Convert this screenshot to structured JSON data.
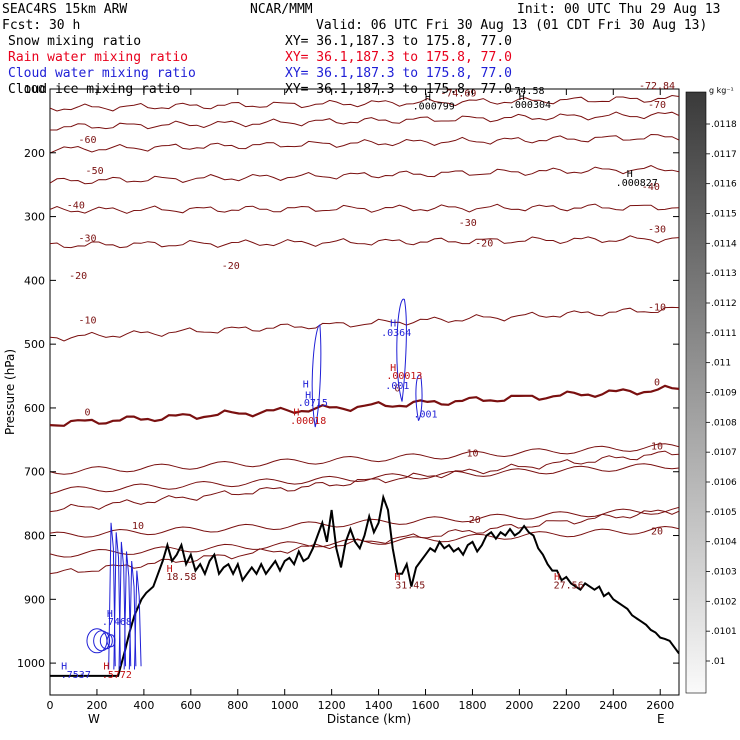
{
  "header": {
    "model": "SEAC4RS 15km ARW",
    "fcst": "Fcst:   30 h",
    "center": "NCAR/MMM",
    "init": "Init: 00 UTC Thu 29 Aug 13",
    "valid": "Valid: 06 UTC Fri 30 Aug 13 (01 CDT Fri 30 Aug 13)"
  },
  "fields": [
    {
      "name": "Snow mixing ratio",
      "xy": "XY=  36.1,187.3 to 175.8, 77.0",
      "color": "#000000"
    },
    {
      "name": "Rain water mixing ratio",
      "xy": "XY=  36.1,187.3 to 175.8, 77.0",
      "color": "#e8001c"
    },
    {
      "name": "Cloud water mixing ratio",
      "xy": "XY=  36.1,187.3 to 175.8, 77.0",
      "color": "#1f1fd6"
    },
    {
      "name": "Cloud ice mixing ratio",
      "xy": "XY=  36.1,187.3 to 175.8, 77.0",
      "color": "#000000"
    }
  ],
  "colorbar": {
    "unit": "g kg⁻¹",
    "labels": [
      ".0118",
      ".0117",
      ".0116",
      ".0115",
      ".0114",
      ".0113",
      ".0112",
      ".0111",
      ".011",
      ".0109",
      ".0108",
      ".0107",
      ".0106",
      ".0105",
      ".0104",
      ".0103",
      ".0102",
      ".0101",
      ".01"
    ]
  },
  "colors": {
    "temp_contour": "#7a1010",
    "rain": "#c01010",
    "cloud_water": "#1f1fd6",
    "terrain": "#000000"
  },
  "chart_data": {
    "type": "cross-section contour",
    "xlabel": "Distance (km)",
    "ylabel": "Pressure (hPa)",
    "xlim": [
      0,
      2680
    ],
    "ylim": [
      1050,
      100
    ],
    "xticks": [
      0,
      200,
      400,
      600,
      800,
      1000,
      1200,
      1400,
      1600,
      1800,
      2000,
      2200,
      2400,
      2600
    ],
    "yticks": [
      200,
      300,
      400,
      500,
      600,
      700,
      800,
      900,
      1000
    ],
    "ytick_top_label": "100",
    "end_labels": {
      "left": "W",
      "right": "E"
    },
    "temperature_isotherms": [
      {
        "value": -70,
        "p_left": 130,
        "p_right": 115
      },
      {
        "value": -60,
        "p_left": 160,
        "p_right": 140
      },
      {
        "value": -50,
        "p_left": 195,
        "p_right": 175
      },
      {
        "value": -40,
        "p_left": 245,
        "p_right": 225
      },
      {
        "value": -30,
        "p_left": 290,
        "p_right": 285
      },
      {
        "value": -20,
        "p_left": 345,
        "p_right": 335
      },
      {
        "value": -10,
        "p_left": 490,
        "p_right": 445
      },
      {
        "value": 0,
        "p_left": 625,
        "p_right": 570
      },
      {
        "value": 10,
        "p_left": 760,
        "p_right": 670
      },
      {
        "value": 20,
        "p_left": 860,
        "p_right": 760
      }
    ],
    "isotherm_labels": [
      {
        "text": "-60",
        "x": 160,
        "p": 185
      },
      {
        "text": "-50",
        "x": 190,
        "p": 233
      },
      {
        "text": "-40",
        "x": 110,
        "p": 287
      },
      {
        "text": "-30",
        "x": 160,
        "p": 339
      },
      {
        "text": "-20",
        "x": 120,
        "p": 398
      },
      {
        "text": "-10",
        "x": 160,
        "p": 468
      },
      {
        "text": "-20",
        "x": 770,
        "p": 382
      },
      {
        "text": "-30",
        "x": 1780,
        "p": 315
      },
      {
        "text": "-40",
        "x": 2560,
        "p": 258
      },
      {
        "text": "-30",
        "x": 2840,
        "p": 325
      },
      {
        "text": "-20",
        "x": 1850,
        "p": 347
      },
      {
        "text": "-10",
        "x": 2620,
        "p": 447
      },
      {
        "text": "-70",
        "x": 2670,
        "p": 130
      },
      {
        "text": "0",
        "x": 160,
        "p": 612
      },
      {
        "text": "0",
        "x": 1480,
        "p": 574
      },
      {
        "text": "0",
        "x": 2590,
        "p": 565
      },
      {
        "text": "10",
        "x": 1800,
        "p": 676
      },
      {
        "text": "10",
        "x": 2930,
        "p": 665
      },
      {
        "text": "20",
        "x": 1810,
        "p": 780
      },
      {
        "text": "20",
        "x": 2820,
        "p": 798
      },
      {
        "text": "10",
        "x": 375,
        "p": 790
      },
      {
        "text": "-72.84",
        "x": 2800,
        "p": 100
      }
    ],
    "extrema_labels": [
      {
        "text": "H",
        "x": 1610,
        "p": 118,
        "color": "#000000"
      },
      {
        "text": ".000799",
        "x": 1635,
        "p": 132,
        "color": "#000000"
      },
      {
        "text": "-74.69",
        "x": 1740,
        "p": 112,
        "color": "#7a1010"
      },
      {
        "text": "-74.58",
        "x": 2030,
        "p": 108,
        "color": "#000000"
      },
      {
        "text": "H",
        "x": 2010,
        "p": 117,
        "color": "#000000"
      },
      {
        "text": ".000304",
        "x": 2045,
        "p": 130,
        "color": "#000000"
      },
      {
        "text": "H",
        "x": 2470,
        "p": 238,
        "color": "#000000"
      },
      {
        "text": ".000827",
        "x": 2500,
        "p": 252,
        "color": "#000000"
      },
      {
        "text": "H",
        "x": 1462,
        "p": 472,
        "color": "#1f1fd6"
      },
      {
        "text": ".0364",
        "x": 1475,
        "p": 487,
        "color": "#1f1fd6"
      },
      {
        "text": "H",
        "x": 1462,
        "p": 542,
        "color": "#c01010"
      },
      {
        "text": ".00013",
        "x": 1510,
        "p": 555,
        "color": "#c01010"
      },
      {
        "text": ".001",
        "x": 1480,
        "p": 570,
        "color": "#1f1fd6"
      },
      {
        "text": ".001",
        "x": 1600,
        "p": 615,
        "color": "#1f1fd6"
      },
      {
        "text": "H",
        "x": 1090,
        "p": 568,
        "color": "#1f1fd6"
      },
      {
        "text": "H",
        "x": 1100,
        "p": 585,
        "color": "#1f1fd6"
      },
      {
        "text": ".0715",
        "x": 1120,
        "p": 597,
        "color": "#1f1fd6"
      },
      {
        "text": "H",
        "x": 1050,
        "p": 612,
        "color": "#c01010"
      },
      {
        "text": ".00018",
        "x": 1100,
        "p": 625,
        "color": "#c01010"
      },
      {
        "text": "H",
        "x": 510,
        "p": 857,
        "color": "#c01010"
      },
      {
        "text": "18.58",
        "x": 560,
        "p": 870,
        "color": "#7a1010"
      },
      {
        "text": "H",
        "x": 1480,
        "p": 870,
        "color": "#c01010"
      },
      {
        "text": "31.45",
        "x": 1535,
        "p": 883,
        "color": "#7a1010"
      },
      {
        "text": "H",
        "x": 2160,
        "p": 870,
        "color": "#c01010"
      },
      {
        "text": "27.56",
        "x": 2210,
        "p": 883,
        "color": "#7a1010"
      },
      {
        "text": "H",
        "x": 255,
        "p": 928,
        "color": "#1f1fd6"
      },
      {
        "text": ".7468",
        "x": 285,
        "p": 940,
        "color": "#1f1fd6"
      },
      {
        "text": "H",
        "x": 60,
        "p": 1010,
        "color": "#1f1fd6"
      },
      {
        "text": ".7537",
        "x": 110,
        "p": 1023,
        "color": "#1f1fd6"
      },
      {
        "text": "H",
        "x": 240,
        "p": 1010,
        "color": "#c01010"
      },
      {
        "text": ".5772",
        "x": 285,
        "p": 1023,
        "color": "#c01010"
      }
    ],
    "terrain": [
      [
        0,
        1020
      ],
      [
        290,
        1020
      ],
      [
        320,
        980
      ],
      [
        340,
        950
      ],
      [
        360,
        925
      ],
      [
        390,
        900
      ],
      [
        410,
        890
      ],
      [
        440,
        880
      ],
      [
        460,
        860
      ],
      [
        480,
        840
      ],
      [
        500,
        815
      ],
      [
        520,
        840
      ],
      [
        540,
        830
      ],
      [
        560,
        815
      ],
      [
        580,
        845
      ],
      [
        600,
        830
      ],
      [
        620,
        855
      ],
      [
        640,
        845
      ],
      [
        660,
        860
      ],
      [
        680,
        840
      ],
      [
        700,
        830
      ],
      [
        720,
        860
      ],
      [
        740,
        850
      ],
      [
        760,
        845
      ],
      [
        780,
        860
      ],
      [
        800,
        845
      ],
      [
        820,
        870
      ],
      [
        840,
        860
      ],
      [
        860,
        850
      ],
      [
        880,
        860
      ],
      [
        900,
        845
      ],
      [
        920,
        860
      ],
      [
        940,
        850
      ],
      [
        960,
        840
      ],
      [
        980,
        855
      ],
      [
        1000,
        840
      ],
      [
        1020,
        835
      ],
      [
        1040,
        845
      ],
      [
        1060,
        825
      ],
      [
        1080,
        840
      ],
      [
        1100,
        835
      ],
      [
        1120,
        820
      ],
      [
        1140,
        800
      ],
      [
        1160,
        780
      ],
      [
        1180,
        810
      ],
      [
        1200,
        760
      ],
      [
        1220,
        820
      ],
      [
        1240,
        850
      ],
      [
        1260,
        810
      ],
      [
        1280,
        790
      ],
      [
        1300,
        810
      ],
      [
        1320,
        820
      ],
      [
        1340,
        800
      ],
      [
        1360,
        770
      ],
      [
        1380,
        795
      ],
      [
        1400,
        780
      ],
      [
        1420,
        740
      ],
      [
        1440,
        760
      ],
      [
        1460,
        820
      ],
      [
        1480,
        860
      ],
      [
        1500,
        860
      ],
      [
        1520,
        845
      ],
      [
        1540,
        880
      ],
      [
        1560,
        850
      ],
      [
        1580,
        840
      ],
      [
        1600,
        830
      ],
      [
        1620,
        820
      ],
      [
        1640,
        825
      ],
      [
        1660,
        810
      ],
      [
        1680,
        820
      ],
      [
        1700,
        815
      ],
      [
        1720,
        825
      ],
      [
        1740,
        820
      ],
      [
        1760,
        830
      ],
      [
        1780,
        815
      ],
      [
        1800,
        810
      ],
      [
        1820,
        825
      ],
      [
        1840,
        815
      ],
      [
        1860,
        800
      ],
      [
        1880,
        795
      ],
      [
        1900,
        805
      ],
      [
        1920,
        795
      ],
      [
        1940,
        800
      ],
      [
        1960,
        790
      ],
      [
        1980,
        800
      ],
      [
        2000,
        795
      ],
      [
        2020,
        785
      ],
      [
        2040,
        795
      ],
      [
        2060,
        800
      ],
      [
        2080,
        820
      ],
      [
        2100,
        830
      ],
      [
        2120,
        845
      ],
      [
        2140,
        855
      ],
      [
        2160,
        855
      ],
      [
        2180,
        870
      ],
      [
        2200,
        865
      ],
      [
        2220,
        875
      ],
      [
        2240,
        880
      ],
      [
        2260,
        885
      ],
      [
        2280,
        875
      ],
      [
        2300,
        880
      ],
      [
        2320,
        885
      ],
      [
        2340,
        880
      ],
      [
        2360,
        895
      ],
      [
        2380,
        890
      ],
      [
        2400,
        900
      ],
      [
        2420,
        905
      ],
      [
        2440,
        910
      ],
      [
        2460,
        915
      ],
      [
        2480,
        925
      ],
      [
        2500,
        930
      ],
      [
        2520,
        935
      ],
      [
        2540,
        940
      ],
      [
        2560,
        948
      ],
      [
        2580,
        952
      ],
      [
        2600,
        960
      ],
      [
        2620,
        962
      ],
      [
        2640,
        965
      ],
      [
        2660,
        975
      ],
      [
        2680,
        985
      ]
    ]
  }
}
